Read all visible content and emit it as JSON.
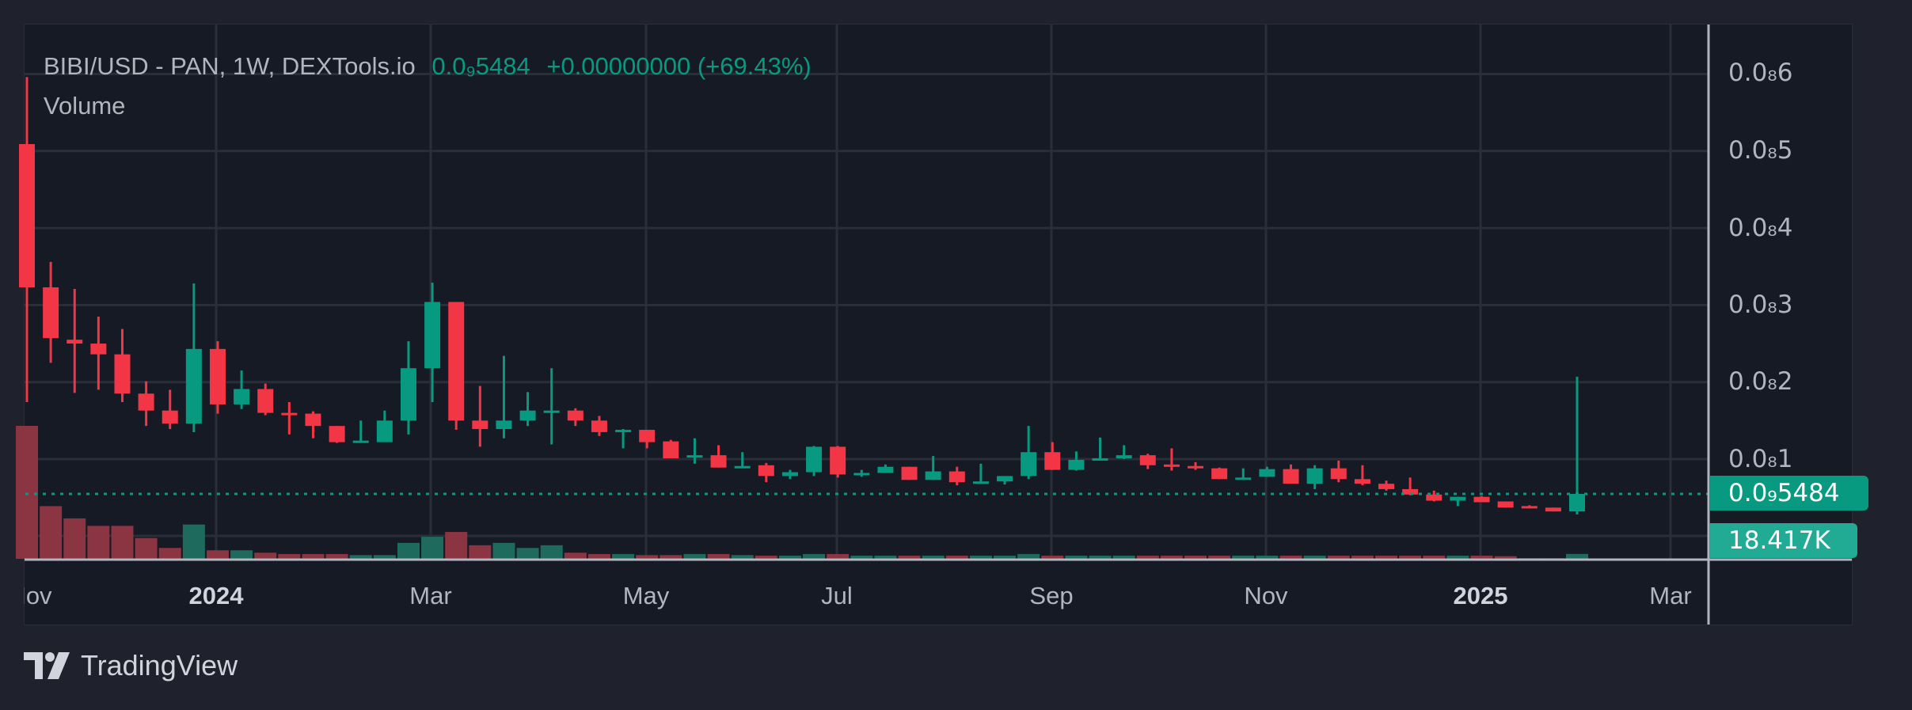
{
  "legend": {
    "symbol": "BIBI/USD - PAN, 1W, DEXTools.io",
    "price": "0.0₉5484",
    "change": "+0.00000000 (+69.43%)",
    "volume_label": "Volume"
  },
  "price_axis": {
    "labels": [
      "0.0₈6",
      "0.0₈5",
      "0.0₈4",
      "0.0₈3",
      "0.0₈2",
      "0.0₈1"
    ],
    "current_price": "0.0₉5484",
    "current_volume": "18.417K"
  },
  "time_axis": {
    "labels": [
      "Nov",
      "2024",
      "Mar",
      "May",
      "Jul",
      "Sep",
      "Nov",
      "2025",
      "Mar"
    ]
  },
  "branding": {
    "name": "TradingView"
  },
  "colors": {
    "up": "#089981",
    "down": "#f23645",
    "vol_up": "#1e6b5e",
    "vol_down": "#8b3442"
  },
  "chart_data": {
    "type": "candlestick",
    "title": "BIBI/USD - PAN, 1W",
    "price_unit": "1e-9 USD",
    "ylim": [
      0,
      6.2
    ],
    "ohlc": [
      [
        5.09,
        5.96,
        1.74,
        3.23
      ],
      [
        3.23,
        3.56,
        2.25,
        2.57
      ],
      [
        2.55,
        3.21,
        1.86,
        2.5
      ],
      [
        2.5,
        2.85,
        1.9,
        2.36
      ],
      [
        2.36,
        2.69,
        1.74,
        1.85
      ],
      [
        1.85,
        2.01,
        1.43,
        1.63
      ],
      [
        1.63,
        1.9,
        1.39,
        1.46
      ],
      [
        1.46,
        3.28,
        1.35,
        2.43
      ],
      [
        2.43,
        2.53,
        1.59,
        1.71
      ],
      [
        1.71,
        2.15,
        1.65,
        1.91
      ],
      [
        1.91,
        1.98,
        1.57,
        1.6
      ],
      [
        1.6,
        1.74,
        1.32,
        1.57
      ],
      [
        1.59,
        1.62,
        1.27,
        1.43
      ],
      [
        1.43,
        1.43,
        1.21,
        1.22
      ],
      [
        1.22,
        1.5,
        1.21,
        1.24
      ],
      [
        1.22,
        1.63,
        1.22,
        1.5
      ],
      [
        1.5,
        2.53,
        1.32,
        2.18
      ],
      [
        2.18,
        3.29,
        1.74,
        3.04
      ],
      [
        3.04,
        3.04,
        1.38,
        1.5
      ],
      [
        1.5,
        1.95,
        1.16,
        1.39
      ],
      [
        1.39,
        2.34,
        1.27,
        1.5
      ],
      [
        1.5,
        1.87,
        1.43,
        1.63
      ],
      [
        1.61,
        2.18,
        1.19,
        1.63
      ],
      [
        1.63,
        1.66,
        1.43,
        1.5
      ],
      [
        1.5,
        1.56,
        1.3,
        1.35
      ],
      [
        1.36,
        1.39,
        1.14,
        1.38
      ],
      [
        1.38,
        1.38,
        1.14,
        1.22
      ],
      [
        1.23,
        1.25,
        1.01,
        1.01
      ],
      [
        1.04,
        1.27,
        0.94,
        1.05
      ],
      [
        1.05,
        1.18,
        0.89,
        0.89
      ],
      [
        0.89,
        1.09,
        0.89,
        0.91
      ],
      [
        0.92,
        0.95,
        0.7,
        0.78
      ],
      [
        0.78,
        0.86,
        0.74,
        0.83
      ],
      [
        0.83,
        1.17,
        0.78,
        1.16
      ],
      [
        1.16,
        1.17,
        0.76,
        0.8
      ],
      [
        0.8,
        0.86,
        0.77,
        0.82
      ],
      [
        0.82,
        0.93,
        0.82,
        0.9
      ],
      [
        0.9,
        0.9,
        0.73,
        0.73
      ],
      [
        0.73,
        1.04,
        0.73,
        0.84
      ],
      [
        0.84,
        0.9,
        0.66,
        0.7
      ],
      [
        0.7,
        0.94,
        0.7,
        0.71
      ],
      [
        0.71,
        0.78,
        0.67,
        0.78
      ],
      [
        0.78,
        1.43,
        0.74,
        1.09
      ],
      [
        1.09,
        1.22,
        0.86,
        0.86
      ],
      [
        0.86,
        1.1,
        0.85,
        0.99
      ],
      [
        0.99,
        1.28,
        0.98,
        1.01
      ],
      [
        1.01,
        1.18,
        1.0,
        1.05
      ],
      [
        1.05,
        1.07,
        0.87,
        0.92
      ],
      [
        0.93,
        1.14,
        0.85,
        0.91
      ],
      [
        0.91,
        0.96,
        0.86,
        0.88
      ],
      [
        0.88,
        0.89,
        0.74,
        0.74
      ],
      [
        0.74,
        0.88,
        0.74,
        0.76
      ],
      [
        0.77,
        0.9,
        0.77,
        0.87
      ],
      [
        0.87,
        0.93,
        0.68,
        0.68
      ],
      [
        0.68,
        0.92,
        0.61,
        0.88
      ],
      [
        0.88,
        0.98,
        0.7,
        0.74
      ],
      [
        0.74,
        0.92,
        0.66,
        0.68
      ],
      [
        0.68,
        0.72,
        0.59,
        0.61
      ],
      [
        0.61,
        0.76,
        0.53,
        0.54
      ],
      [
        0.54,
        0.59,
        0.45,
        0.46
      ],
      [
        0.46,
        0.51,
        0.39,
        0.51
      ],
      [
        0.51,
        0.52,
        0.44,
        0.44
      ],
      [
        0.45,
        0.45,
        0.37,
        0.37
      ],
      [
        0.39,
        0.4,
        0.36,
        0.36
      ],
      [
        0.37,
        0.37,
        0.32,
        0.32
      ],
      [
        0.32,
        2.07,
        0.28,
        0.5484
      ]
    ],
    "volume_k": [
      500,
      198,
      152,
      124,
      124,
      78,
      41,
      129,
      32,
      32,
      23,
      18,
      18,
      18,
      14,
      14,
      60,
      83,
      101,
      51,
      60,
      41,
      51,
      23,
      18,
      18,
      14,
      14,
      18,
      18,
      14,
      12,
      12,
      18,
      18,
      12,
      12,
      12,
      12,
      12,
      12,
      12,
      18,
      12,
      12,
      12,
      12,
      12,
      12,
      12,
      12,
      12,
      12,
      12,
      12,
      12,
      12,
      12,
      12,
      12,
      12,
      12,
      10,
      2,
      2,
      18.417
    ]
  }
}
